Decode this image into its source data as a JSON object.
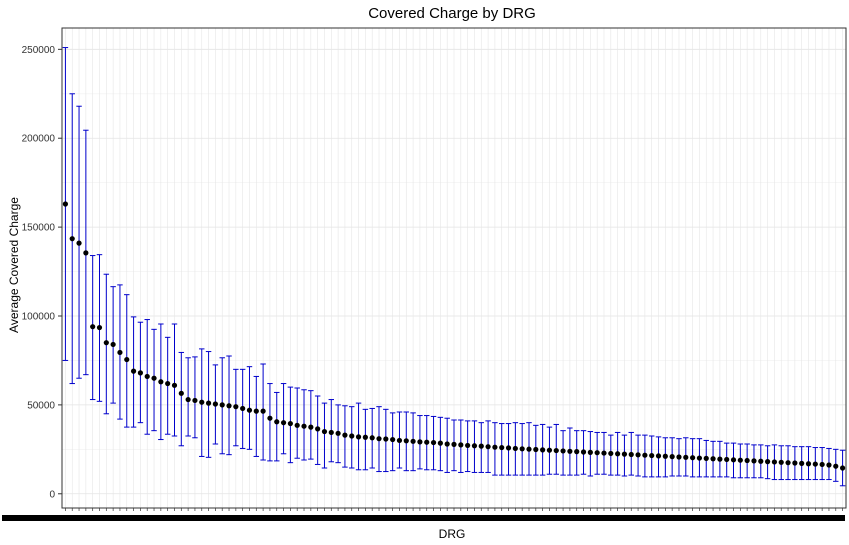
{
  "chart_data": {
    "type": "scatter",
    "title": "Covered Charge by DRG",
    "xlabel": "DRG",
    "ylabel": "Average Covered Charge",
    "ylim": [
      -8000,
      262000
    ],
    "y_ticks": [
      0,
      50000,
      100000,
      150000,
      200000,
      250000
    ],
    "grid": true,
    "point_color": "#000000",
    "errorbar_color": "#0000CC",
    "series": [
      {
        "mean": [
          163000,
          143500,
          141000,
          135500,
          94000,
          93500,
          85000,
          84000,
          79500,
          75500,
          69000,
          68000,
          66000,
          65000,
          63000,
          62000,
          61000,
          56500,
          53000,
          52500,
          51500,
          51000,
          50500,
          50000,
          49500,
          49000,
          48000,
          47000,
          46500,
          46500,
          42500,
          40500,
          40000,
          39500,
          38500,
          38000,
          37500,
          36500,
          35000,
          34500,
          34000,
          33000,
          32500,
          32000,
          31800,
          31500,
          31000,
          30800,
          30500,
          30000,
          29800,
          29500,
          29200,
          29000,
          28800,
          28500,
          28000,
          27800,
          27500,
          27200,
          27000,
          26800,
          26500,
          26200,
          26000,
          25800,
          25500,
          25300,
          25100,
          24900,
          24700,
          24500,
          24300,
          24100,
          23900,
          23700,
          23500,
          23300,
          23100,
          22900,
          22700,
          22500,
          22300,
          22100,
          21900,
          21700,
          21500,
          21300,
          21100,
          20900,
          20700,
          20500,
          20300,
          20100,
          19900,
          19700,
          19500,
          19300,
          19100,
          18900,
          18700,
          18500,
          18300,
          18100,
          17900,
          17700,
          17500,
          17300,
          17100,
          16900,
          16700,
          16500,
          16200,
          15500,
          14500
        ],
        "lower": [
          75000,
          62000,
          65000,
          67000,
          53000,
          52000,
          45000,
          51000,
          42000,
          37500,
          37500,
          40000,
          33500,
          35500,
          30500,
          33500,
          32500,
          27000,
          32500,
          31500,
          21000,
          20500,
          28000,
          22500,
          22000,
          27000,
          25500,
          25000,
          21000,
          19000,
          18500,
          18500,
          22500,
          17500,
          20000,
          19000,
          19500,
          16500,
          14500,
          18000,
          17500,
          15000,
          14500,
          13500,
          13500,
          14500,
          12500,
          12500,
          13000,
          14500,
          13000,
          13000,
          14000,
          13500,
          13500,
          13000,
          12000,
          13000,
          12000,
          12500,
          12000,
          12000,
          12000,
          10500,
          10500,
          10500,
          10500,
          10500,
          10500,
          10500,
          10500,
          11000,
          11000,
          10500,
          10500,
          10500,
          11000,
          10000,
          11000,
          11000,
          10500,
          10500,
          10000,
          10500,
          10000,
          9500,
          9500,
          9500,
          9500,
          10000,
          10000,
          10000,
          9500,
          9500,
          9500,
          9500,
          9500,
          9500,
          9000,
          9000,
          9000,
          9000,
          9000,
          8500,
          8000,
          8000,
          8000,
          8000,
          8000,
          8000,
          8000,
          8000,
          8000,
          7000,
          4500
        ],
        "upper": [
          251000,
          225000,
          218000,
          204500,
          134000,
          134500,
          123500,
          116500,
          117500,
          112000,
          99500,
          96500,
          98000,
          92500,
          95500,
          88000,
          95500,
          79500,
          76500,
          77000,
          81500,
          80000,
          72500,
          76500,
          77500,
          70000,
          70000,
          71500,
          66000,
          73000,
          62000,
          57000,
          62000,
          60000,
          59500,
          58500,
          58000,
          55000,
          51000,
          53000,
          50000,
          49500,
          49000,
          51000,
          47500,
          48000,
          49000,
          47500,
          45500,
          46000,
          46000,
          45500,
          44000,
          44000,
          43500,
          43000,
          42500,
          41500,
          41500,
          41000,
          41000,
          40000,
          41000,
          40000,
          39500,
          39500,
          40000,
          39500,
          40000,
          38500,
          39000,
          37500,
          39000,
          35500,
          37000,
          35500,
          35500,
          35000,
          34500,
          34500,
          33000,
          34500,
          33000,
          34500,
          33000,
          33000,
          32500,
          32000,
          31500,
          31500,
          31000,
          31500,
          31000,
          31000,
          30000,
          29500,
          29500,
          28500,
          28500,
          28000,
          28000,
          27500,
          27500,
          27000,
          27500,
          27000,
          27000,
          26500,
          26500,
          26500,
          26000,
          26000,
          25500,
          25000,
          24500
        ]
      }
    ]
  }
}
